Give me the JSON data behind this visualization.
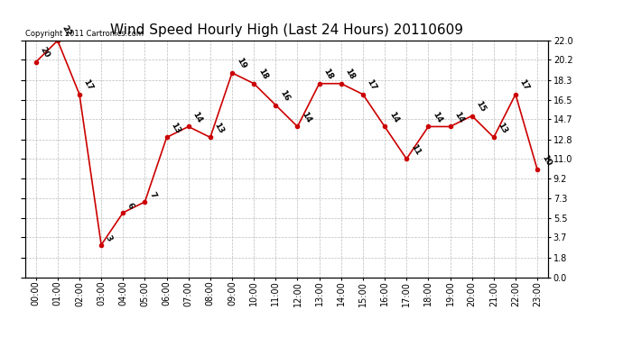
{
  "title": "Wind Speed Hourly High (Last 24 Hours) 20110609",
  "copyright": "Copyright 2011 Cartronics.com",
  "hours": [
    "00:00",
    "01:00",
    "02:00",
    "03:00",
    "04:00",
    "05:00",
    "06:00",
    "07:00",
    "08:00",
    "09:00",
    "10:00",
    "11:00",
    "12:00",
    "13:00",
    "14:00",
    "15:00",
    "16:00",
    "17:00",
    "18:00",
    "19:00",
    "20:00",
    "21:00",
    "22:00",
    "23:00"
  ],
  "values": [
    20,
    22,
    17,
    3,
    6,
    7,
    13,
    14,
    13,
    19,
    18,
    16,
    14,
    18,
    18,
    17,
    14,
    11,
    14,
    14,
    15,
    13,
    17,
    10
  ],
  "line_color": "#cc0000",
  "marker_color": "#cc0000",
  "background_color": "#ffffff",
  "grid_color": "#bbbbbb",
  "ylim": [
    0.0,
    22.0
  ],
  "yticks": [
    0.0,
    1.8,
    3.7,
    5.5,
    7.3,
    9.2,
    11.0,
    12.8,
    14.7,
    16.5,
    18.3,
    20.2,
    22.0
  ],
  "title_fontsize": 11,
  "annotation_fontsize": 6.5,
  "tick_fontsize": 7,
  "copyright_fontsize": 6
}
